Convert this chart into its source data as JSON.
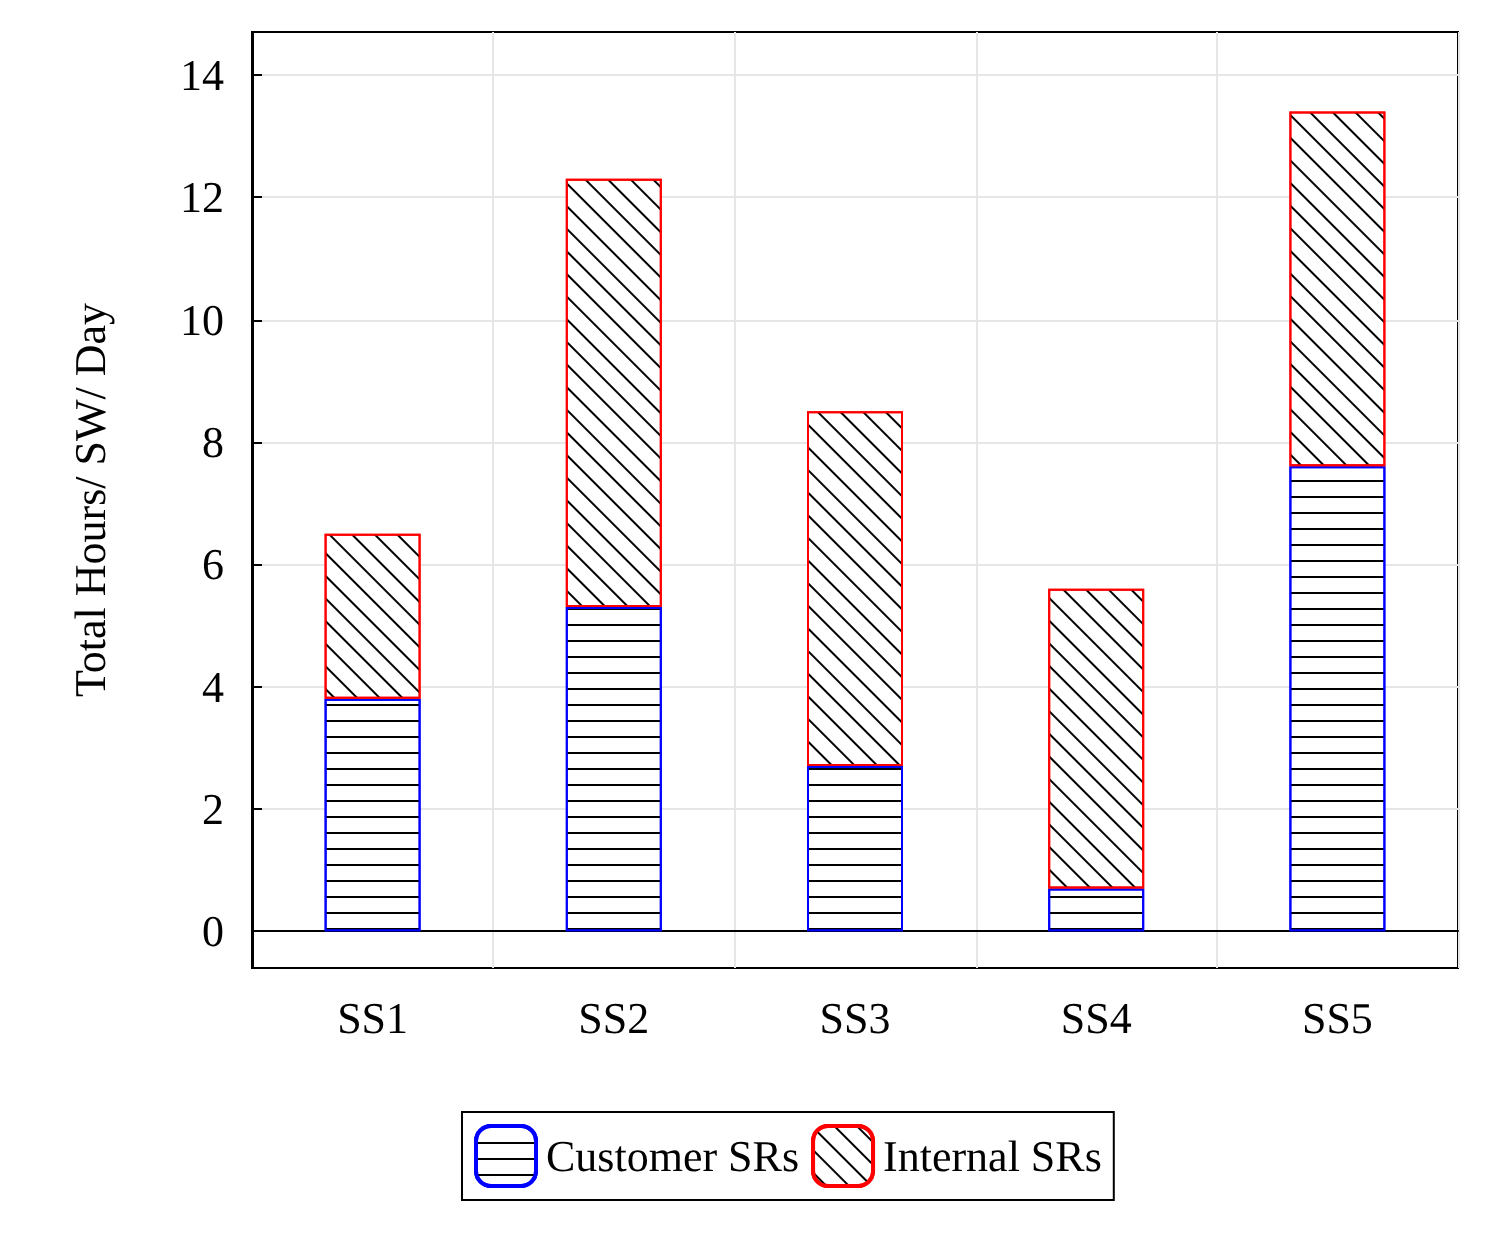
{
  "chart_data": {
    "type": "bar",
    "stacked": true,
    "ylabel": "Total Hours/ SW/ Day",
    "categories": [
      "SS1",
      "SS2",
      "SS3",
      "SS4",
      "SS5"
    ],
    "series": [
      {
        "name": "Customer SRs",
        "color": "#0000ff",
        "values": [
          3.8,
          5.3,
          2.7,
          0.7,
          7.6
        ]
      },
      {
        "name": "Internal SRs",
        "color": "#ff0000",
        "values": [
          2.7,
          7.0,
          5.8,
          4.9,
          5.8
        ]
      }
    ],
    "ylim": [
      -0.6,
      14.7
    ],
    "yticks": [
      0,
      2,
      4,
      6,
      8,
      10,
      12,
      14
    ],
    "grid": true,
    "legend": "bottom"
  }
}
